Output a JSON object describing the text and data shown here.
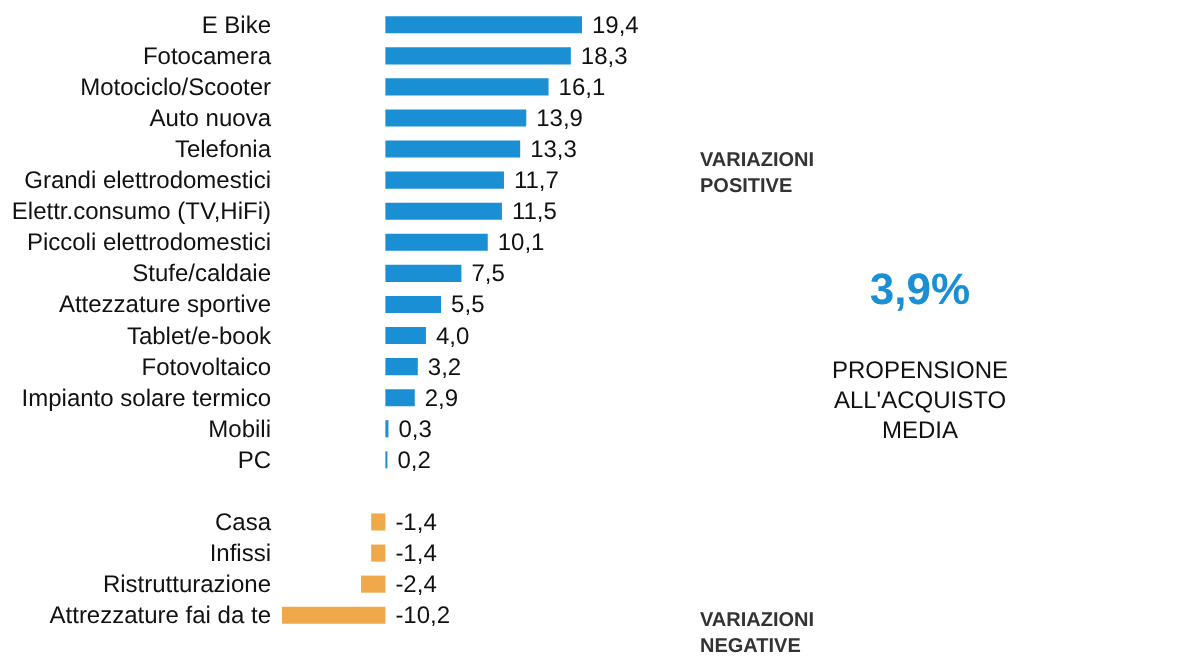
{
  "chart_data": {
    "type": "bar",
    "orientation": "horizontal",
    "value_labels": [
      "19,4",
      "18,3",
      "16,1",
      "13,9",
      "13,3",
      "11,7",
      "11,5",
      "10,1",
      "7,5",
      "5,5",
      "4,0",
      "3,2",
      "2,9",
      "0,3",
      "0,2",
      null,
      "-1,4",
      "-1,4",
      "-2,4",
      "-10,2"
    ],
    "categories": [
      "E Bike",
      "Fotocamera",
      "Motociclo/Scooter",
      "Auto nuova",
      "Telefonia",
      "Grandi elettrodomestici",
      "Elettr.consumo (TV,HiFi)",
      "Piccoli elettrodomestici",
      "Stufe/caldaie",
      "Attezzature sportive",
      "Tablet/e-book",
      "Fotovoltaico",
      "Impianto solare termico",
      "Mobili",
      "PC",
      null,
      "Casa",
      "Infissi",
      "Ristrutturazione",
      "Attrezzature fai da te"
    ],
    "values": [
      19.4,
      18.3,
      16.1,
      13.9,
      13.3,
      11.7,
      11.5,
      10.1,
      7.5,
      5.5,
      4.0,
      3.2,
      2.9,
      0.3,
      0.2,
      null,
      -1.4,
      -1.4,
      -2.4,
      -10.2
    ],
    "colors": [
      "#1a8fd4",
      "#1a8fd4",
      "#1a8fd4",
      "#1a8fd4",
      "#1a8fd4",
      "#1a8fd4",
      "#1a8fd4",
      "#1a8fd4",
      "#1a8fd4",
      "#1a8fd4",
      "#1a8fd4",
      "#1a8fd4",
      "#1a8fd4",
      "#1a8fd4",
      "#1a8fd4",
      null,
      "#f0a94a",
      "#f0a94a",
      "#f0a94a",
      "#f0a94a"
    ],
    "annotations": [
      "VARIAZIONI POSITIVE",
      "3,9%",
      "PROPENSIONE ALL'ACQUISTO MEDIA",
      "VARIAZIONI NEGATIVE"
    ]
  }
}
